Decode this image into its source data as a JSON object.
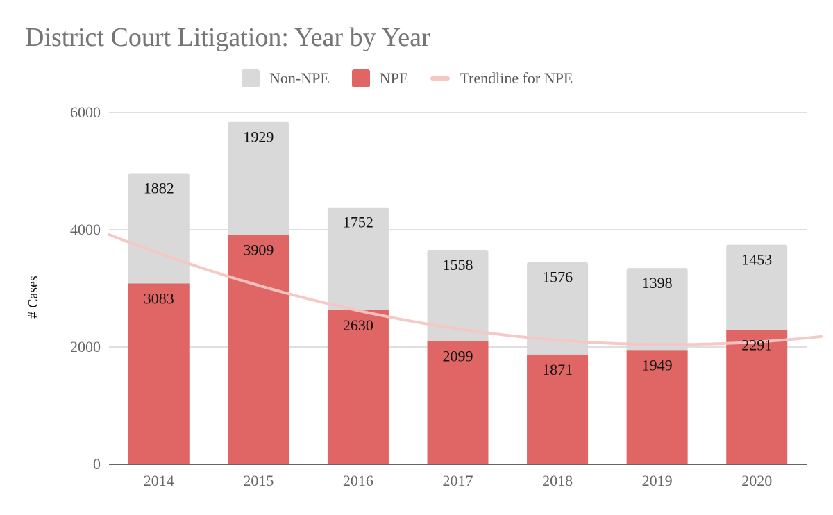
{
  "chart_data": {
    "type": "bar",
    "stacked": true,
    "title": "District Court Litigation: Year by Year",
    "xlabel": "",
    "ylabel": "# Cases",
    "ylim": [
      0,
      6000
    ],
    "yticks": [
      0,
      2000,
      4000,
      6000
    ],
    "grid": true,
    "legend_position": "top",
    "categories": [
      "2014",
      "2015",
      "2016",
      "2017",
      "2018",
      "2019",
      "2020"
    ],
    "series": [
      {
        "name": "NPE",
        "color": "#e06666",
        "values": [
          3083,
          3909,
          2630,
          2099,
          1871,
          1949,
          2291
        ]
      },
      {
        "name": "Non-NPE",
        "color": "#d9d9d9",
        "values": [
          1882,
          1929,
          1752,
          1558,
          1576,
          1398,
          1453
        ]
      }
    ],
    "trendline": {
      "name": "Trendline for NPE",
      "color": "#f4c7c3",
      "type": "polynomial",
      "description": "quadratic fit of NPE series"
    },
    "legend": [
      {
        "label": "Non-NPE",
        "color": "#d9d9d9",
        "shape": "square"
      },
      {
        "label": "NPE",
        "color": "#e06666",
        "shape": "square"
      },
      {
        "label": "Trendline for NPE",
        "color": "#f4c7c3",
        "shape": "line"
      }
    ]
  }
}
